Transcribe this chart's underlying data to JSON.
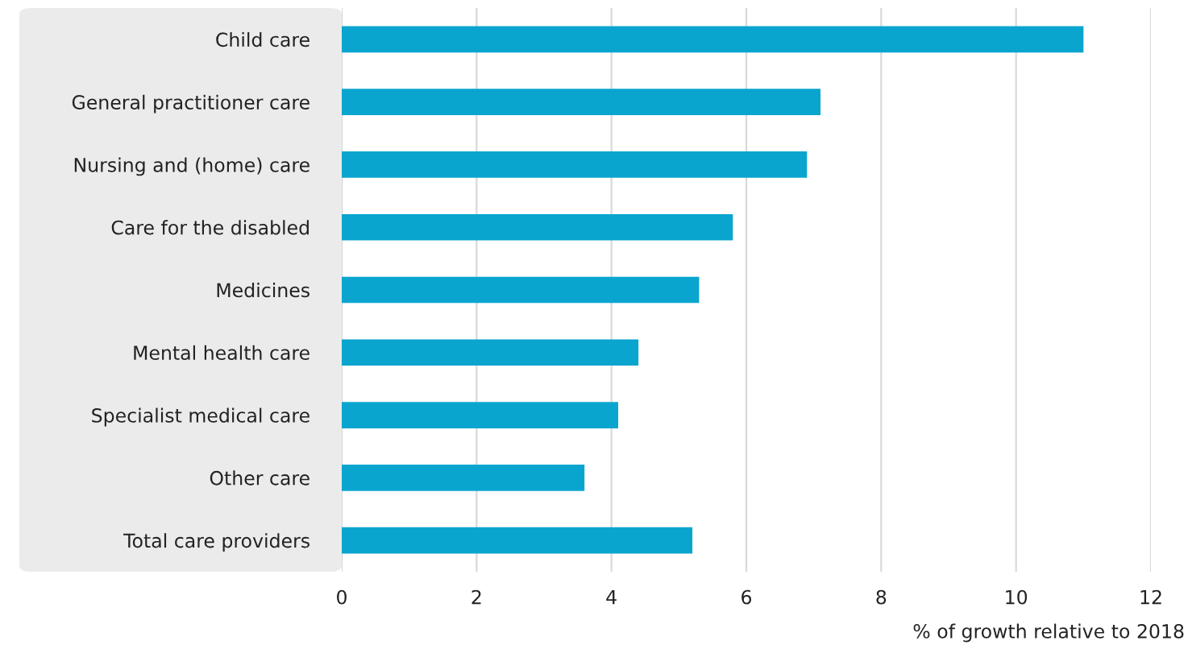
{
  "chart_data": {
    "type": "bar",
    "orientation": "horizontal",
    "xlabel": "% of growth relative to 2018",
    "categories": [
      "Child care",
      "General practitioner care",
      "Nursing and (home) care",
      "Care for the disabled",
      "Medicines",
      "Mental health care",
      "Specialist medical care",
      "Other care",
      "Total care providers"
    ],
    "values": [
      11.0,
      7.1,
      6.9,
      5.8,
      5.3,
      4.4,
      4.1,
      3.6,
      5.2
    ],
    "color": "#0aa5cf",
    "xlim": [
      0,
      12
    ],
    "xticks": [
      0,
      2,
      4,
      6,
      8,
      10,
      12
    ],
    "grid": "x"
  }
}
